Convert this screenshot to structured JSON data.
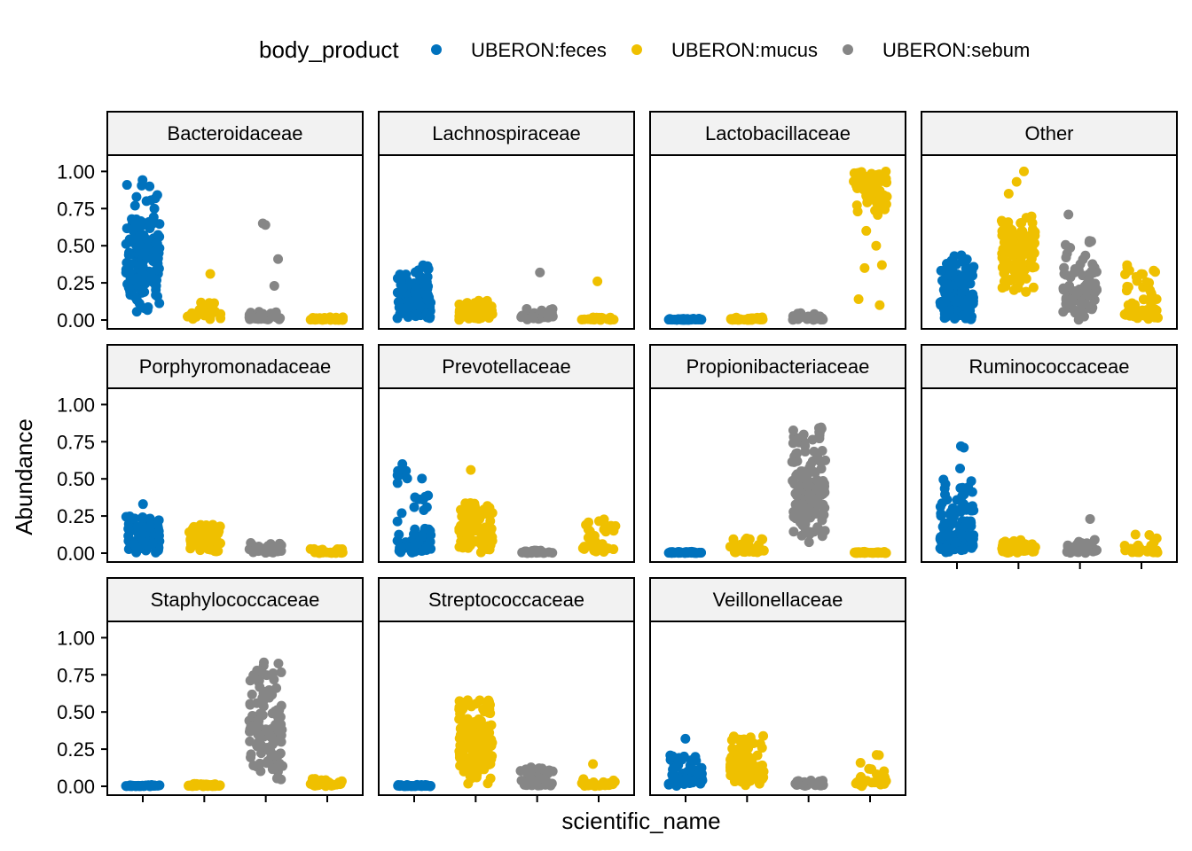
{
  "chart_data": {
    "type": "scatter",
    "subtype": "faceted-jitter-strip",
    "xlabel": "scientific_name",
    "ylabel": "Abundance",
    "ylim": [
      0,
      1.05
    ],
    "y_ticks": [
      "0.00",
      "0.25",
      "0.50",
      "0.75",
      "1.00"
    ],
    "y_tick_values": [
      0,
      0.25,
      0.5,
      0.75,
      1.0
    ],
    "legend": {
      "title": "body_product",
      "placement": "top",
      "entries": [
        {
          "key": "feces",
          "label": "UBERON:feces",
          "color": "#0072BD"
        },
        {
          "key": "mucus",
          "label": "UBERON:mucus",
          "color": "#EFC000"
        },
        {
          "key": "sebum",
          "label": "UBERON:sebum",
          "color": "#868686"
        }
      ]
    },
    "grid": false,
    "strip_colors": [
      "feces",
      "mucus",
      "sebum",
      "mucus"
    ],
    "facets": [
      {
        "title": "Bacteroidaceae",
        "strips": [
          {
            "min": 0.02,
            "max": 0.95,
            "mid": 0.42,
            "n": 150,
            "out": []
          },
          {
            "min": 0.0,
            "max": 0.12,
            "mid": 0.03,
            "n": 25,
            "out": [
              0.31
            ]
          },
          {
            "min": 0.0,
            "max": 0.06,
            "mid": 0.02,
            "n": 40,
            "out": [
              0.23,
              0.41,
              0.64,
              0.65
            ]
          },
          {
            "min": 0.0,
            "max": 0.02,
            "mid": 0.005,
            "n": 40,
            "out": []
          }
        ]
      },
      {
        "title": "Lachnospiraceae",
        "strips": [
          {
            "min": 0.0,
            "max": 0.37,
            "mid": 0.12,
            "n": 120,
            "out": []
          },
          {
            "min": 0.0,
            "max": 0.14,
            "mid": 0.06,
            "n": 80,
            "out": []
          },
          {
            "min": 0.0,
            "max": 0.08,
            "mid": 0.02,
            "n": 30,
            "out": [
              0.32
            ]
          },
          {
            "min": 0.0,
            "max": 0.02,
            "mid": 0.005,
            "n": 30,
            "out": [
              0.26
            ]
          }
        ]
      },
      {
        "title": "Lactobacillaceae",
        "strips": [
          {
            "min": 0.0,
            "max": 0.01,
            "mid": 0.003,
            "n": 40,
            "out": []
          },
          {
            "min": 0.0,
            "max": 0.02,
            "mid": 0.005,
            "n": 40,
            "out": []
          },
          {
            "min": 0.0,
            "max": 0.05,
            "mid": 0.01,
            "n": 30,
            "out": []
          },
          {
            "min": 0.7,
            "max": 1.0,
            "mid": 0.93,
            "n": 80,
            "out": [
              0.1,
              0.14,
              0.35,
              0.37,
              0.5,
              0.6
            ]
          }
        ]
      },
      {
        "title": "Other",
        "strips": [
          {
            "min": 0.0,
            "max": 0.44,
            "mid": 0.15,
            "n": 150,
            "out": []
          },
          {
            "min": 0.15,
            "max": 0.7,
            "mid": 0.45,
            "n": 120,
            "out": [
              0.85,
              0.93,
              1.0
            ]
          },
          {
            "min": 0.0,
            "max": 0.55,
            "mid": 0.2,
            "n": 90,
            "out": [
              0.71
            ]
          },
          {
            "min": 0.0,
            "max": 0.37,
            "mid": 0.07,
            "n": 60,
            "out": []
          }
        ]
      },
      {
        "title": "Porphyromonadaceae",
        "strips": [
          {
            "min": 0.0,
            "max": 0.25,
            "mid": 0.08,
            "n": 90,
            "out": [
              0.33
            ]
          },
          {
            "min": 0.0,
            "max": 0.2,
            "mid": 0.07,
            "n": 70,
            "out": []
          },
          {
            "min": 0.0,
            "max": 0.07,
            "mid": 0.02,
            "n": 40,
            "out": []
          },
          {
            "min": 0.0,
            "max": 0.03,
            "mid": 0.005,
            "n": 30,
            "out": []
          }
        ]
      },
      {
        "title": "Prevotellaceae",
        "strips": [
          {
            "min": 0.0,
            "max": 0.6,
            "mid": 0.05,
            "n": 90,
            "out": []
          },
          {
            "min": 0.0,
            "max": 0.35,
            "mid": 0.15,
            "n": 120,
            "out": [
              0.56
            ]
          },
          {
            "min": 0.0,
            "max": 0.02,
            "mid": 0.005,
            "n": 30,
            "out": []
          },
          {
            "min": 0.0,
            "max": 0.25,
            "mid": 0.05,
            "n": 40,
            "out": []
          }
        ]
      },
      {
        "title": "Propionibacteriaceae",
        "strips": [
          {
            "min": 0.0,
            "max": 0.01,
            "mid": 0.003,
            "n": 40,
            "out": []
          },
          {
            "min": 0.0,
            "max": 0.1,
            "mid": 0.02,
            "n": 40,
            "out": []
          },
          {
            "min": 0.05,
            "max": 0.85,
            "mid": 0.42,
            "n": 130,
            "out": []
          },
          {
            "min": 0.0,
            "max": 0.01,
            "mid": 0.003,
            "n": 40,
            "out": []
          }
        ]
      },
      {
        "title": "Ruminococcaceae",
        "strips": [
          {
            "min": 0.0,
            "max": 0.5,
            "mid": 0.12,
            "n": 130,
            "out": [
              0.57,
              0.71,
              0.72
            ]
          },
          {
            "min": 0.0,
            "max": 0.09,
            "mid": 0.02,
            "n": 40,
            "out": []
          },
          {
            "min": 0.0,
            "max": 0.09,
            "mid": 0.02,
            "n": 30,
            "out": [
              0.23
            ]
          },
          {
            "min": 0.0,
            "max": 0.13,
            "mid": 0.02,
            "n": 30,
            "out": []
          }
        ]
      },
      {
        "title": "Staphylococcaceae",
        "strips": [
          {
            "min": 0.0,
            "max": 0.01,
            "mid": 0.003,
            "n": 40,
            "out": []
          },
          {
            "min": 0.0,
            "max": 0.02,
            "mid": 0.005,
            "n": 40,
            "out": []
          },
          {
            "min": 0.03,
            "max": 0.85,
            "mid": 0.38,
            "n": 130,
            "out": []
          },
          {
            "min": 0.0,
            "max": 0.05,
            "mid": 0.01,
            "n": 40,
            "out": []
          }
        ]
      },
      {
        "title": "Streptococcaceae",
        "strips": [
          {
            "min": 0.0,
            "max": 0.01,
            "mid": 0.003,
            "n": 40,
            "out": []
          },
          {
            "min": 0.0,
            "max": 0.58,
            "mid": 0.3,
            "n": 160,
            "out": []
          },
          {
            "min": 0.0,
            "max": 0.14,
            "mid": 0.03,
            "n": 50,
            "out": []
          },
          {
            "min": 0.0,
            "max": 0.05,
            "mid": 0.01,
            "n": 30,
            "out": [
              0.15
            ]
          }
        ]
      },
      {
        "title": "Veillonellaceae",
        "strips": [
          {
            "min": 0.0,
            "max": 0.21,
            "mid": 0.05,
            "n": 70,
            "out": [
              0.32
            ]
          },
          {
            "min": 0.0,
            "max": 0.34,
            "mid": 0.13,
            "n": 120,
            "out": []
          },
          {
            "min": 0.0,
            "max": 0.04,
            "mid": 0.01,
            "n": 30,
            "out": []
          },
          {
            "min": 0.0,
            "max": 0.23,
            "mid": 0.03,
            "n": 30,
            "out": []
          }
        ]
      }
    ]
  }
}
